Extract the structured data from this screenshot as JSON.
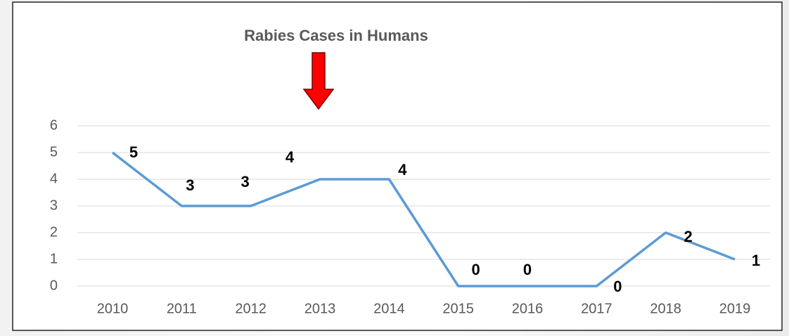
{
  "chart_data": {
    "type": "line",
    "title": "Rabies Cases in Humans",
    "categories": [
      "2010",
      "2011",
      "2012",
      "2013",
      "2014",
      "2015",
      "2016",
      "2017",
      "2018",
      "2019"
    ],
    "series": [
      {
        "name": "Rabies Cases",
        "color": "#5b9bd5",
        "values": [
          5,
          3,
          3,
          4,
          4,
          0,
          0,
          0,
          2,
          1
        ]
      }
    ],
    "ylim": [
      0,
      6
    ],
    "yticks": [
      0,
      1,
      2,
      3,
      4,
      5,
      6
    ],
    "grid": true
  }
}
